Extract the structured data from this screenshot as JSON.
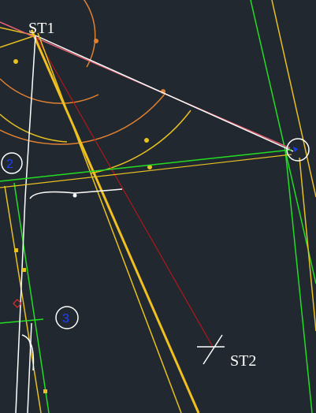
{
  "labels": {
    "station_1": "ST1",
    "station_2": "ST2",
    "marker_2": "2",
    "marker_3": "3"
  }
}
